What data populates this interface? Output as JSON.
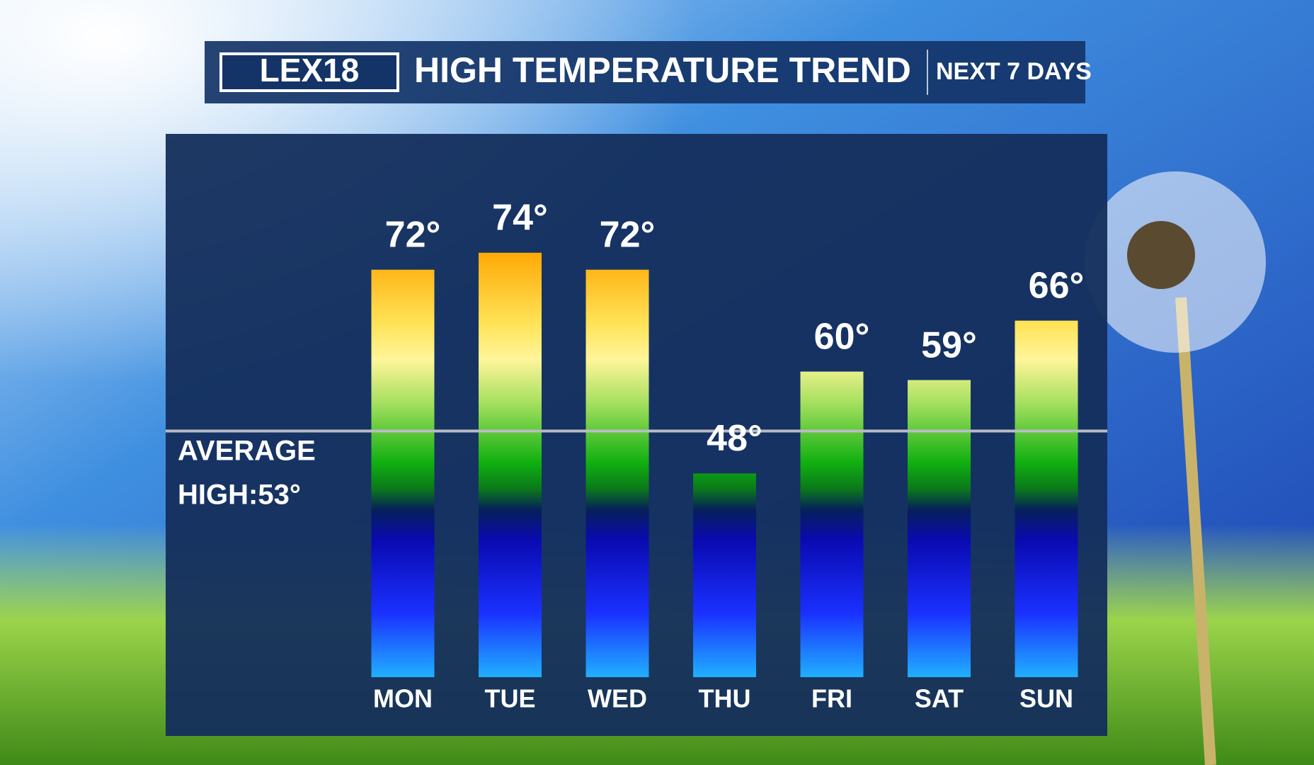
{
  "chart_data": {
    "type": "bar",
    "brand": "LEX18",
    "title": "HIGH TEMPERATURE TREND",
    "subtitle": "NEXT 7 DAYS",
    "categories": [
      "MON",
      "TUE",
      "WED",
      "THU",
      "FRI",
      "SAT",
      "SUN"
    ],
    "values": [
      72,
      74,
      72,
      48,
      60,
      59,
      66
    ],
    "value_labels": [
      "72°",
      "74°",
      "72°",
      "48°",
      "60°",
      "59°",
      "66°"
    ],
    "ylim": [
      24,
      88
    ],
    "reference_line": {
      "value": 53,
      "label_lines": [
        "AVERAGE",
        "HIGH:53°"
      ]
    }
  }
}
